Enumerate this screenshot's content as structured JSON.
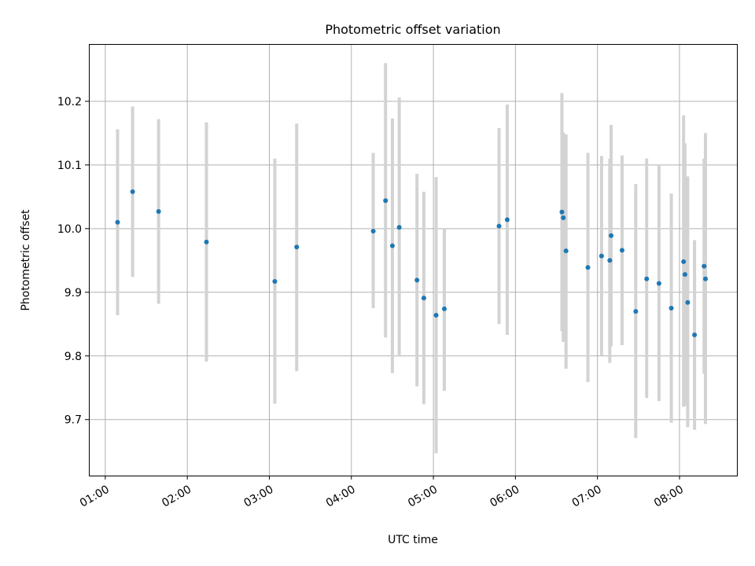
{
  "chart_data": {
    "type": "scatter",
    "title": "Photometric offset variation",
    "xlabel": "UTC time",
    "ylabel": "Photometric offset",
    "xlim": [
      "00:48",
      "08:42"
    ],
    "ylim": [
      9.612,
      10.29
    ],
    "xticks": [
      "01:00",
      "02:00",
      "03:00",
      "04:00",
      "05:00",
      "06:00",
      "07:00",
      "08:00"
    ],
    "yticks": [
      9.7,
      9.8,
      9.9,
      10.0,
      10.1,
      10.2
    ],
    "ytick_labels": [
      "9.7",
      "9.8",
      "9.9",
      "10.0",
      "10.1",
      "10.2"
    ],
    "grid": true,
    "marker_color": "#1f77b4",
    "errorbar_color": "#d3d3d3",
    "points": [
      {
        "x": "01:09",
        "y": 10.01,
        "lo": 9.864,
        "hi": 10.156
      },
      {
        "x": "01:20",
        "y": 10.058,
        "lo": 9.924,
        "hi": 10.192
      },
      {
        "x": "01:39",
        "y": 10.027,
        "lo": 9.882,
        "hi": 10.172
      },
      {
        "x": "02:14",
        "y": 9.979,
        "lo": 9.791,
        "hi": 10.167
      },
      {
        "x": "03:04",
        "y": 9.917,
        "lo": 9.725,
        "hi": 10.11
      },
      {
        "x": "03:20",
        "y": 9.971,
        "lo": 9.776,
        "hi": 10.165
      },
      {
        "x": "04:16",
        "y": 9.996,
        "lo": 9.875,
        "hi": 10.119
      },
      {
        "x": "04:25",
        "y": 10.044,
        "lo": 9.829,
        "hi": 10.26
      },
      {
        "x": "04:30",
        "y": 9.973,
        "lo": 9.773,
        "hi": 10.173
      },
      {
        "x": "04:35",
        "y": 10.002,
        "lo": 9.799,
        "hi": 10.206
      },
      {
        "x": "04:48",
        "y": 9.919,
        "lo": 9.752,
        "hi": 10.086
      },
      {
        "x": "04:53",
        "y": 9.891,
        "lo": 9.724,
        "hi": 10.058
      },
      {
        "x": "05:02",
        "y": 9.864,
        "lo": 9.647,
        "hi": 10.081
      },
      {
        "x": "05:08",
        "y": 9.874,
        "lo": 9.745,
        "hi": 10.0
      },
      {
        "x": "05:48",
        "y": 10.004,
        "lo": 9.85,
        "hi": 10.158
      },
      {
        "x": "05:54",
        "y": 10.014,
        "lo": 9.833,
        "hi": 10.195
      },
      {
        "x": "06:34",
        "y": 10.026,
        "lo": 9.839,
        "hi": 10.213
      },
      {
        "x": "06:35",
        "y": 10.017,
        "lo": 9.822,
        "hi": 10.151
      },
      {
        "x": "06:37",
        "y": 9.965,
        "lo": 9.78,
        "hi": 10.148
      },
      {
        "x": "06:53",
        "y": 9.939,
        "lo": 9.759,
        "hi": 10.119
      },
      {
        "x": "07:03",
        "y": 9.957,
        "lo": 9.8,
        "hi": 10.114
      },
      {
        "x": "07:09",
        "y": 9.95,
        "lo": 9.789,
        "hi": 10.11
      },
      {
        "x": "07:10",
        "y": 9.989,
        "lo": 9.815,
        "hi": 10.163
      },
      {
        "x": "07:18",
        "y": 9.966,
        "lo": 9.817,
        "hi": 10.115
      },
      {
        "x": "07:28",
        "y": 9.87,
        "lo": 9.671,
        "hi": 10.07
      },
      {
        "x": "07:36",
        "y": 9.921,
        "lo": 9.734,
        "hi": 10.11
      },
      {
        "x": "07:45",
        "y": 9.914,
        "lo": 9.729,
        "hi": 10.1
      },
      {
        "x": "07:54",
        "y": 9.875,
        "lo": 9.695,
        "hi": 10.055
      },
      {
        "x": "08:03",
        "y": 9.948,
        "lo": 9.72,
        "hi": 10.178
      },
      {
        "x": "08:04",
        "y": 9.928,
        "lo": 9.722,
        "hi": 10.134
      },
      {
        "x": "08:06",
        "y": 9.884,
        "lo": 9.688,
        "hi": 10.082
      },
      {
        "x": "08:11",
        "y": 9.833,
        "lo": 9.684,
        "hi": 9.982
      },
      {
        "x": "08:18",
        "y": 9.941,
        "lo": 9.772,
        "hi": 10.11
      },
      {
        "x": "08:19",
        "y": 9.921,
        "lo": 9.693,
        "hi": 10.15
      }
    ]
  }
}
